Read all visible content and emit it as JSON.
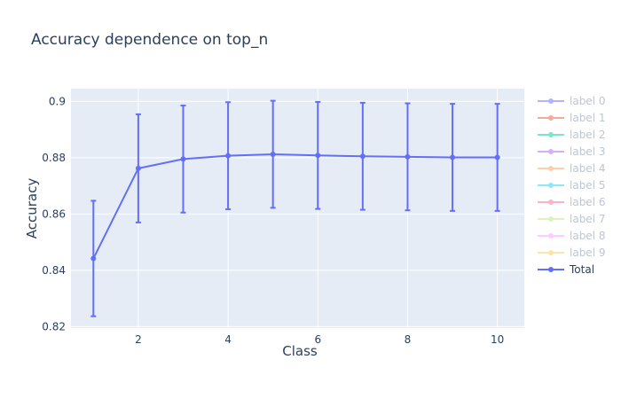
{
  "chart_data": {
    "type": "line",
    "title": "Accuracy dependence on top_n",
    "xlabel": "Class",
    "ylabel": "Accuracy",
    "xlim": [
      0.5,
      10.6
    ],
    "ylim": [
      0.8195,
      0.9045
    ],
    "x_ticks": [
      2,
      4,
      6,
      8,
      10
    ],
    "y_ticks": [
      0.82,
      0.84,
      0.86,
      0.88,
      0.9
    ],
    "x_tick_labels": [
      "2",
      "4",
      "6",
      "8",
      "10"
    ],
    "y_tick_labels": [
      "0.82",
      "0.84",
      "0.86",
      "0.88",
      "0.9"
    ],
    "grid": true,
    "legend_position": "right",
    "series": [
      {
        "name": "label 0",
        "color": "#636efa",
        "legendonly": true
      },
      {
        "name": "label 1",
        "color": "#ef553b",
        "legendonly": true
      },
      {
        "name": "label 2",
        "color": "#00cc96",
        "legendonly": true
      },
      {
        "name": "label 3",
        "color": "#ab63fa",
        "legendonly": true
      },
      {
        "name": "label 4",
        "color": "#ffa15a",
        "legendonly": true
      },
      {
        "name": "label 5",
        "color": "#19d3f3",
        "legendonly": true
      },
      {
        "name": "label 6",
        "color": "#ff6692",
        "legendonly": true
      },
      {
        "name": "label 7",
        "color": "#b6e880",
        "legendonly": true
      },
      {
        "name": "label 8",
        "color": "#ff97ff",
        "legendonly": true
      },
      {
        "name": "label 9",
        "color": "#fecb52",
        "legendonly": true
      },
      {
        "name": "Total",
        "color": "#636efa",
        "legendonly": false,
        "x": [
          1,
          2,
          3,
          4,
          5,
          6,
          7,
          8,
          9,
          10
        ],
        "y": [
          0.8442,
          0.8762,
          0.8795,
          0.8807,
          0.8812,
          0.8808,
          0.8805,
          0.8803,
          0.8801,
          0.8801
        ],
        "error": [
          0.0205,
          0.0192,
          0.019,
          0.019,
          0.019,
          0.019,
          0.019,
          0.019,
          0.019,
          0.019
        ]
      }
    ]
  }
}
